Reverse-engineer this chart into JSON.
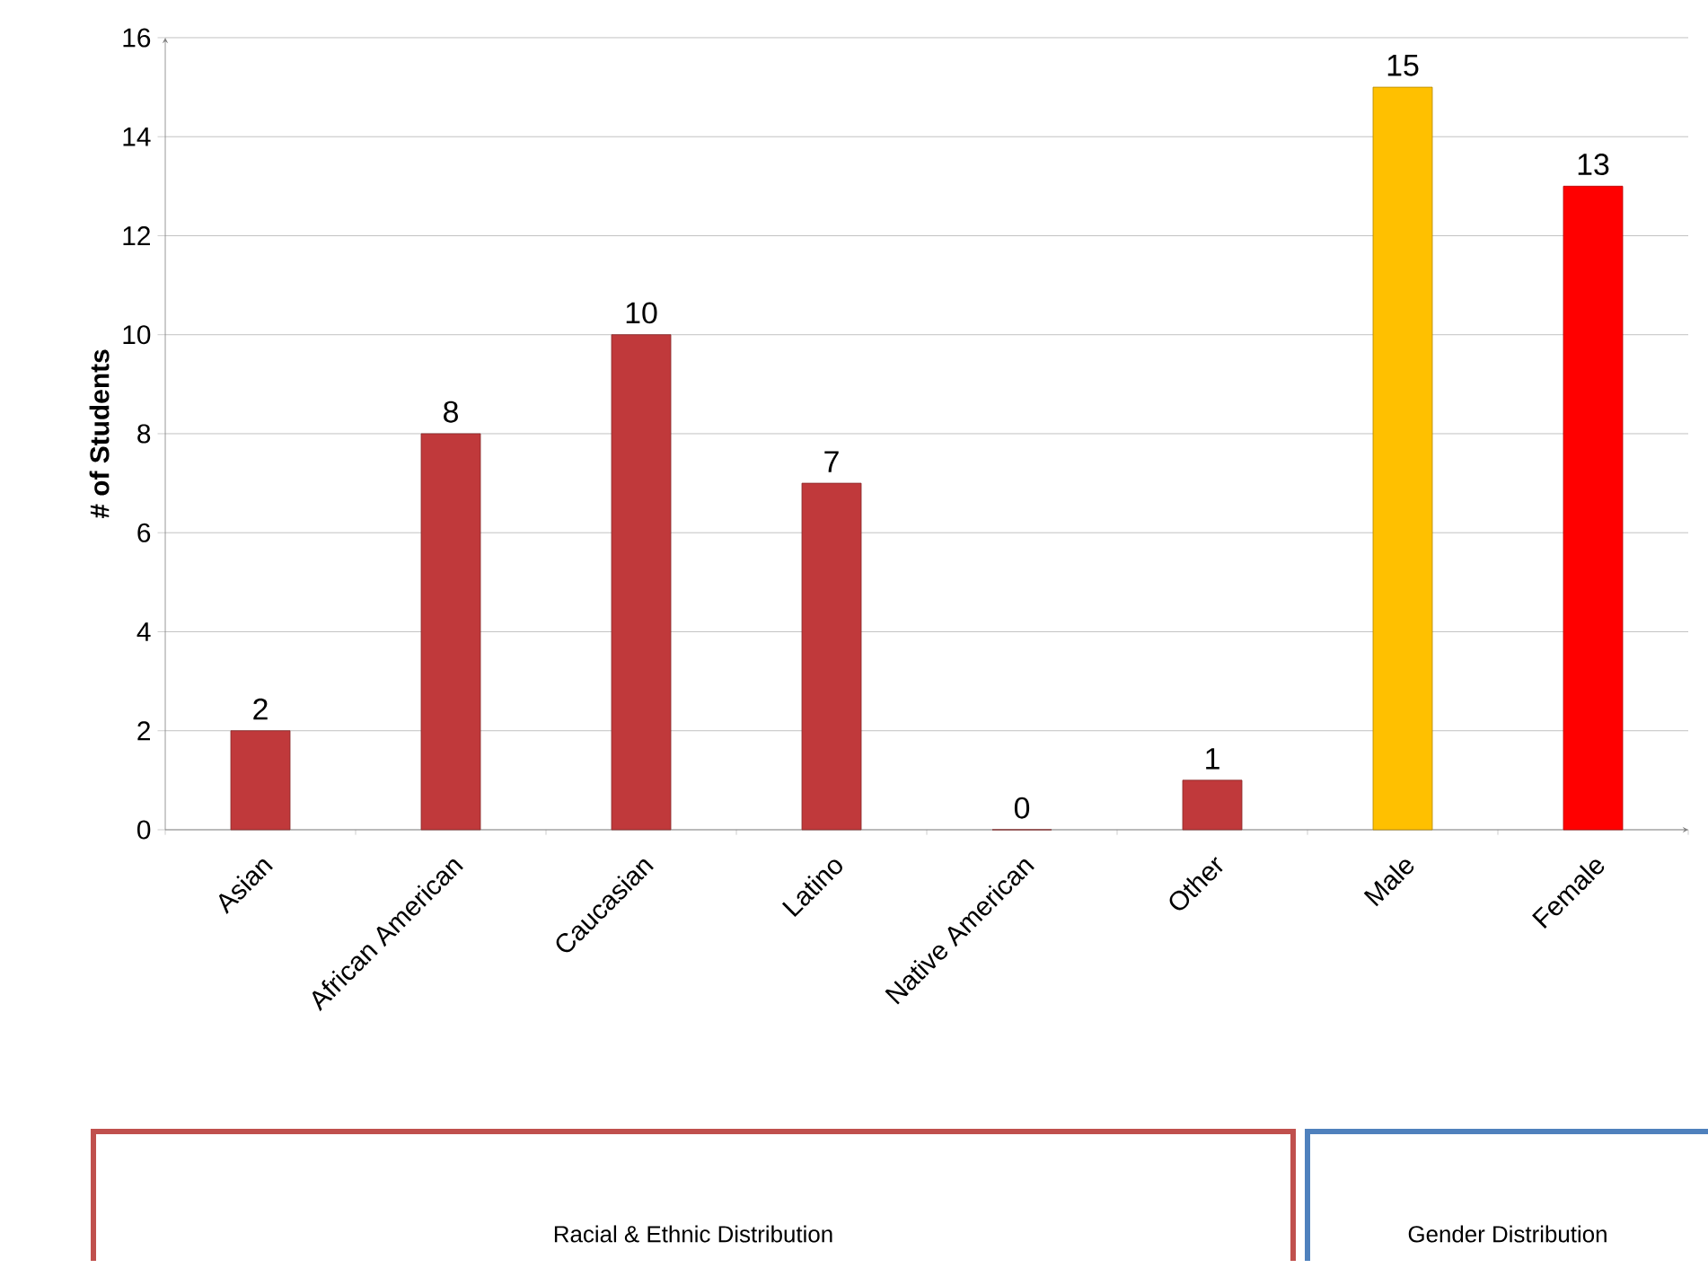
{
  "chart_data": {
    "type": "bar",
    "ylabel": "**# of Students**",
    "categories": [
      "Asian",
      "African American",
      "Caucasian",
      "Latino",
      "Native American",
      "Other",
      "Male",
      "Female"
    ],
    "values": [
      2,
      8,
      10,
      7,
      0,
      1,
      15,
      13
    ],
    "colors": [
      "#c0393b",
      "#c0393b",
      "#c0393b",
      "#c0393b",
      "#c0393b",
      "#c0393b",
      "#ffc000",
      "#ff0000"
    ],
    "ylim": [
      0,
      16
    ],
    "yticks": [
      0,
      2,
      4,
      6,
      8,
      10,
      12,
      14,
      16
    ],
    "grid": "y",
    "data_labels": true,
    "annotations": [
      "Racial & Ethnic Distribution",
      "Gender Distribution"
    ]
  }
}
